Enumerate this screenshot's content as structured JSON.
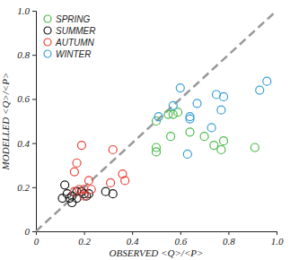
{
  "chart_data": {
    "type": "scatter",
    "x_label": "OBSERVED <Q>/<P>",
    "y_label": "MODELLED <Q>/<P>",
    "xlim": [
      0,
      1
    ],
    "ylim": [
      0,
      1
    ],
    "xticks": [
      0,
      0.2,
      0.4,
      0.6,
      0.8,
      {
        "value": 1,
        "label": "1.0"
      }
    ],
    "yticks": [
      0,
      0.2,
      0.4,
      0.6,
      0.8,
      {
        "value": 1,
        "label": "1.0"
      }
    ],
    "grid": false,
    "legend": "top-left",
    "series": [
      {
        "name": "SPRING",
        "color": "#4cbb4c",
        "marker": "circle-open",
        "x": [
          0.5,
          0.5,
          0.5,
          0.55,
          0.57,
          0.59,
          0.56,
          0.64,
          0.7,
          0.74,
          0.77,
          0.78,
          0.91
        ],
        "values": [
          0.5,
          0.38,
          0.36,
          0.53,
          0.53,
          0.54,
          0.43,
          0.45,
          0.43,
          0.39,
          0.37,
          0.41,
          0.38
        ]
      },
      {
        "name": "SUMMER",
        "color": "#1a1a1a",
        "marker": "circle-open",
        "x": [
          0.11,
          0.13,
          0.14,
          0.15,
          0.15,
          0.17,
          0.12,
          0.19,
          0.21,
          0.22,
          0.2,
          0.29,
          0.32,
          0.17
        ],
        "values": [
          0.15,
          0.17,
          0.15,
          0.13,
          0.16,
          0.15,
          0.21,
          0.18,
          0.16,
          0.17,
          0.17,
          0.18,
          0.17,
          0.18
        ]
      },
      {
        "name": "AUTUMN",
        "color": "#e8453c",
        "marker": "circle-open",
        "x": [
          0.19,
          0.17,
          0.16,
          0.16,
          0.18,
          0.2,
          0.22,
          0.23,
          0.32,
          0.31,
          0.36,
          0.37,
          0.2
        ],
        "values": [
          0.39,
          0.31,
          0.27,
          0.18,
          0.19,
          0.19,
          0.23,
          0.19,
          0.37,
          0.22,
          0.26,
          0.23,
          0.16
        ]
      },
      {
        "name": "WINTER",
        "color": "#3a9fd6",
        "marker": "circle-open",
        "x": [
          0.51,
          0.57,
          0.6,
          0.64,
          0.64,
          0.67,
          0.63,
          0.73,
          0.75,
          0.77,
          0.78,
          0.93,
          0.96
        ],
        "values": [
          0.52,
          0.57,
          0.65,
          0.51,
          0.52,
          0.58,
          0.35,
          0.47,
          0.62,
          0.55,
          0.61,
          0.64,
          0.68
        ]
      },
      {
        "type": "line",
        "line_style": "dashed",
        "color": "#999999",
        "x": [
          0,
          1
        ],
        "values": [
          0,
          1
        ]
      }
    ]
  }
}
